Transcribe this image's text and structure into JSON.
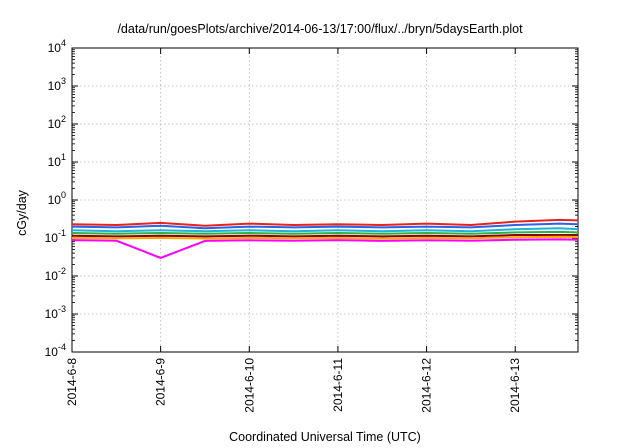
{
  "chart_data": {
    "type": "line",
    "title": "/data/run/goesPlots/archive/2014-06-13/17:00/flux/../bryn/5daysEarth.plot",
    "xlabel": "Coordinated Universal Time (UTC)",
    "ylabel": "cGy/day",
    "y_scale": "log",
    "ylim": [
      0.0001,
      10000
    ],
    "xlim": [
      "2014-06-08 00:00",
      "2014-06-13 17:00"
    ],
    "grid": true,
    "legend": "none",
    "x_ticks": [
      "2014-6-8",
      "2014-6-9",
      "2014-6-10",
      "2014-6-11",
      "2014-6-12",
      "2014-6-13"
    ],
    "y_ticks": [
      {
        "base": "10",
        "exp": "-4"
      },
      {
        "base": "10",
        "exp": "-3"
      },
      {
        "base": "10",
        "exp": "-2"
      },
      {
        "base": "10",
        "exp": "-1"
      },
      {
        "base": "10",
        "exp": "0"
      },
      {
        "base": "10",
        "exp": "1"
      },
      {
        "base": "10",
        "exp": "2"
      },
      {
        "base": "10",
        "exp": "3"
      },
      {
        "base": "10",
        "exp": "4"
      }
    ],
    "x": [
      "2014-06-08 00:00",
      "2014-06-08 12:00",
      "2014-06-09 00:00",
      "2014-06-09 12:00",
      "2014-06-10 00:00",
      "2014-06-10 12:00",
      "2014-06-11 00:00",
      "2014-06-11 12:00",
      "2014-06-12 00:00",
      "2014-06-12 12:00",
      "2014-06-13 00:00",
      "2014-06-13 12:00",
      "2014-06-13 17:00"
    ],
    "series": [
      {
        "color": "#e8231c",
        "values": [
          0.23,
          0.22,
          0.25,
          0.21,
          0.24,
          0.22,
          0.23,
          0.22,
          0.24,
          0.22,
          0.27,
          0.3,
          0.29
        ]
      },
      {
        "color": "#2c62e8",
        "values": [
          0.2,
          0.19,
          0.21,
          0.18,
          0.2,
          0.19,
          0.2,
          0.19,
          0.2,
          0.19,
          0.22,
          0.24,
          0.23
        ]
      },
      {
        "color": "#1fb3d6",
        "values": [
          0.16,
          0.15,
          0.16,
          0.15,
          0.16,
          0.15,
          0.16,
          0.15,
          0.16,
          0.15,
          0.17,
          0.18,
          0.17
        ]
      },
      {
        "color": "#29b24a",
        "values": [
          0.135,
          0.13,
          0.135,
          0.13,
          0.135,
          0.13,
          0.135,
          0.13,
          0.135,
          0.13,
          0.14,
          0.145,
          0.14
        ]
      },
      {
        "color": "#8b0000",
        "values": [
          0.115,
          0.11,
          0.115,
          0.11,
          0.115,
          0.11,
          0.115,
          0.11,
          0.115,
          0.11,
          0.12,
          0.12,
          0.12
        ]
      },
      {
        "color": "#ffa500",
        "values": [
          0.1,
          0.098,
          0.1,
          0.097,
          0.1,
          0.098,
          0.1,
          0.097,
          0.1,
          0.098,
          0.105,
          0.108,
          0.106
        ]
      },
      {
        "color": "#ff00ff",
        "values": [
          0.088,
          0.085,
          0.03,
          0.084,
          0.087,
          0.085,
          0.088,
          0.084,
          0.087,
          0.085,
          0.09,
          0.092,
          0.09
        ]
      }
    ]
  }
}
